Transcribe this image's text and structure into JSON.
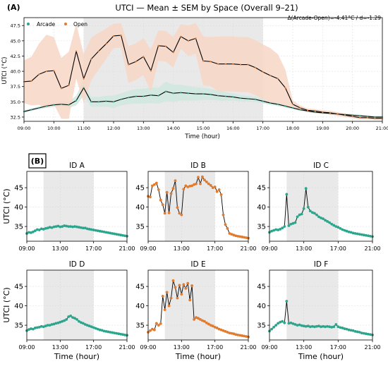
{
  "figure": {
    "panel_a_label": "(A)",
    "panel_b_label": "(B)"
  },
  "colors": {
    "arcade": "#2ca58d",
    "open": "#e07b2f",
    "arcade_band": "#cfe8de",
    "open_band": "#f7d6c6",
    "highlight": "#e9e9e9"
  },
  "chart_data": [
    {
      "type": "line",
      "title": "UTCI — Mean ± SEM by Space (Overall 9–21)",
      "xlabel": "Time (hour)",
      "ylabel": "UTCI (°C)",
      "annotation": "Δ(Arcade-Open)=-4.41°C / d=-1.29",
      "legend": [
        "Arcade",
        "Open"
      ],
      "legend_position": "top-left",
      "xlim": [
        9,
        21
      ],
      "ylim": [
        31.8,
        48.8
      ],
      "xticks": [
        9,
        10,
        11,
        12,
        13,
        14,
        15,
        16,
        17,
        18,
        19,
        20,
        21
      ],
      "xticklabels": [
        "09:00",
        "10:00",
        "11:00",
        "12:00",
        "13:00",
        "14:00",
        "15:00",
        "16:00",
        "17:00",
        "18:00",
        "19:00",
        "20:00",
        "21:00"
      ],
      "yticks": [
        32.5,
        35.0,
        37.5,
        40.0,
        42.5,
        45.0,
        47.5
      ],
      "yticklabels": [
        "32.5",
        "35.0",
        "37.5",
        "40.0",
        "42.5",
        "45.0",
        "47.5"
      ],
      "highlight": [
        11,
        17
      ],
      "series": [
        {
          "name": "Arcade",
          "x": [
            9,
            9.25,
            9.5,
            9.75,
            10,
            10.25,
            10.5,
            10.75,
            11,
            11.25,
            11.5,
            11.75,
            12,
            12.25,
            12.5,
            12.75,
            13,
            13.25,
            13.5,
            13.75,
            14,
            14.25,
            14.5,
            14.75,
            15,
            15.25,
            15.5,
            15.75,
            16,
            16.25,
            16.5,
            16.75,
            17,
            17.25,
            17.5,
            17.75,
            18,
            18.25,
            18.5,
            18.75,
            19,
            19.25,
            19.5,
            19.75,
            20,
            20.25,
            20.5,
            20.75,
            21
          ],
          "mean": [
            33.4,
            33.7,
            34.0,
            34.3,
            34.5,
            34.6,
            34.5,
            35.2,
            37.3,
            35.0,
            35.0,
            35.1,
            35.0,
            35.4,
            35.7,
            35.9,
            35.9,
            36.1,
            36.0,
            36.7,
            36.4,
            36.5,
            36.4,
            36.3,
            36.3,
            36.2,
            36.0,
            35.9,
            35.8,
            35.6,
            35.5,
            35.4,
            35.1,
            34.8,
            34.6,
            34.3,
            34.0,
            33.7,
            33.5,
            33.3,
            33.2,
            33.1,
            33.0,
            32.9,
            32.8,
            32.7,
            32.6,
            32.5,
            32.5
          ],
          "sem": [
            0.2,
            0.2,
            0.25,
            0.3,
            0.35,
            0.4,
            0.5,
            0.8,
            1.3,
            0.8,
            0.8,
            0.9,
            1.0,
            1.0,
            1.1,
            1.2,
            1.2,
            1.3,
            1.3,
            1.6,
            1.4,
            1.3,
            1.2,
            1.1,
            1.0,
            0.9,
            0.8,
            0.7,
            0.6,
            0.5,
            0.45,
            0.4,
            0.35,
            0.3,
            0.3,
            0.25,
            0.25,
            0.2,
            0.2,
            0.2,
            0.2,
            0.2,
            0.2,
            0.2,
            0.2,
            0.2,
            0.2,
            0.2,
            0.2
          ]
        },
        {
          "name": "Open",
          "x": [
            9,
            9.25,
            9.5,
            9.75,
            10,
            10.25,
            10.5,
            10.75,
            11,
            11.25,
            11.5,
            11.75,
            12,
            12.25,
            12.5,
            12.75,
            13,
            13.25,
            13.5,
            13.75,
            14,
            14.25,
            14.5,
            14.75,
            15,
            15.25,
            15.5,
            15.75,
            16,
            16.25,
            16.5,
            16.75,
            17,
            17.25,
            17.5,
            17.75,
            18,
            18.25,
            18.5,
            18.75,
            19,
            19.25,
            19.5,
            19.75,
            20,
            20.25,
            20.5,
            20.75,
            21
          ],
          "mean": [
            38.3,
            38.4,
            39.5,
            40.0,
            40.1,
            37.2,
            37.7,
            43.3,
            38.8,
            42.0,
            43.3,
            44.5,
            45.8,
            45.9,
            41.1,
            41.6,
            42.4,
            40.1,
            44.2,
            44.1,
            43.1,
            45.7,
            45.0,
            45.4,
            41.7,
            41.6,
            41.2,
            41.2,
            41.2,
            41.1,
            41.1,
            40.6,
            39.9,
            39.3,
            38.8,
            37.3,
            34.6,
            34.0,
            33.6,
            33.5,
            33.3,
            33.2,
            33.0,
            32.8,
            32.6,
            32.4,
            32.4,
            32.3,
            32.3
          ],
          "sem": [
            3.5,
            4.0,
            5.0,
            6.0,
            5.5,
            5.0,
            5.5,
            4.5,
            4.0,
            3.5,
            3.0,
            2.5,
            2.0,
            2.0,
            3.0,
            3.0,
            3.0,
            3.5,
            2.5,
            2.5,
            2.5,
            2.0,
            2.5,
            2.5,
            4.0,
            4.0,
            4.5,
            4.5,
            4.5,
            4.5,
            4.5,
            4.5,
            4.5,
            4.5,
            4.0,
            3.0,
            0.6,
            0.4,
            0.3,
            0.3,
            0.3,
            0.3,
            0.3,
            0.3,
            0.3,
            0.3,
            0.3,
            0.3,
            0.3
          ]
        }
      ]
    },
    {
      "type": "scatter",
      "title": "ID A",
      "space": "Arcade",
      "xlabel": "",
      "ylabel": "UTCI (°C)",
      "ylim": [
        31.2,
        49.2
      ],
      "yticks": [
        35,
        40,
        45
      ],
      "xticks": [
        9,
        13,
        17,
        21
      ],
      "xticklabels": [
        "09:00",
        "13:00",
        "17:00",
        "21:00"
      ],
      "highlight": [
        11,
        17
      ],
      "x": [
        9,
        9.25,
        9.5,
        9.75,
        10,
        10.25,
        10.5,
        10.75,
        11,
        11.25,
        11.5,
        11.75,
        12,
        12.25,
        12.5,
        12.75,
        13,
        13.25,
        13.5,
        13.75,
        14,
        14.25,
        14.5,
        14.75,
        15,
        15.25,
        15.5,
        15.75,
        16,
        16.25,
        16.5,
        16.75,
        17,
        17.25,
        17.5,
        17.75,
        18,
        18.25,
        18.5,
        18.75,
        19,
        19.25,
        19.5,
        19.75,
        20,
        20.25,
        20.5,
        20.75,
        21
      ],
      "y": [
        33.2,
        33.5,
        33.4,
        33.6,
        33.9,
        34.2,
        34.1,
        34.4,
        34.3,
        34.5,
        34.6,
        34.8,
        34.7,
        34.9,
        35.0,
        35.1,
        34.9,
        35.0,
        35.2,
        35.1,
        35.0,
        35.0,
        34.9,
        35.0,
        34.9,
        34.8,
        34.7,
        34.6,
        34.6,
        34.4,
        34.3,
        34.2,
        34.1,
        34.0,
        33.9,
        33.8,
        33.7,
        33.6,
        33.5,
        33.4,
        33.3,
        33.2,
        33.1,
        33.0,
        32.9,
        32.8,
        32.7,
        32.6,
        32.5
      ]
    },
    {
      "type": "scatter",
      "title": "ID B",
      "space": "Open",
      "xlabel": "",
      "ylabel": "",
      "ylim": [
        31.2,
        49.2
      ],
      "yticks": [
        35,
        40,
        45
      ],
      "xticks": [
        9,
        13,
        17,
        21
      ],
      "xticklabels": [
        "09:00",
        "13:00",
        "17:00",
        "21:00"
      ],
      "highlight": [
        11,
        17
      ],
      "x": [
        9,
        9.25,
        9.5,
        9.75,
        10,
        10.25,
        10.5,
        10.75,
        11,
        11.25,
        11.5,
        11.75,
        12,
        12.25,
        12.5,
        12.75,
        13,
        13.25,
        13.5,
        13.75,
        14,
        14.25,
        14.5,
        14.75,
        15,
        15.25,
        15.5,
        15.75,
        16,
        16.25,
        16.5,
        16.75,
        17,
        17.25,
        17.5,
        17.75,
        18,
        18.25,
        18.5,
        18.75,
        19,
        19.25,
        19.5,
        19.75,
        20,
        20.25,
        20.5,
        20.75,
        21
      ],
      "y": [
        42.8,
        42.6,
        45.5,
        45.8,
        46.2,
        44.5,
        41.8,
        40.6,
        38.4,
        43.8,
        38.5,
        43.5,
        44.8,
        46.8,
        39.9,
        38.4,
        38.0,
        44.6,
        45.5,
        45.2,
        45.4,
        45.5,
        45.8,
        46.0,
        47.7,
        46.0,
        47.8,
        47.0,
        46.5,
        46.0,
        45.6,
        45.0,
        45.2,
        44.0,
        44.5,
        43.2,
        38.0,
        35.5,
        34.5,
        33.2,
        33.0,
        32.8,
        32.6,
        32.5,
        32.4,
        32.3,
        32.2,
        32.1,
        32.0
      ]
    },
    {
      "type": "scatter",
      "title": "ID C",
      "space": "Arcade",
      "xlabel": "",
      "ylabel": "",
      "ylim": [
        31.2,
        49.2
      ],
      "yticks": [
        35,
        40,
        45
      ],
      "xticks": [
        9,
        13,
        17,
        21
      ],
      "xticklabels": [
        "09:00",
        "13:00",
        "17:00",
        "21:00"
      ],
      "highlight": [
        11,
        17
      ],
      "x": [
        9,
        9.25,
        9.5,
        9.75,
        10,
        10.25,
        10.5,
        10.75,
        11,
        11.25,
        11.5,
        11.75,
        12,
        12.25,
        12.5,
        12.75,
        13,
        13.25,
        13.5,
        13.75,
        14,
        14.25,
        14.5,
        14.75,
        15,
        15.25,
        15.5,
        15.75,
        16,
        16.25,
        16.5,
        16.75,
        17,
        17.25,
        17.5,
        17.75,
        18,
        18.25,
        18.5,
        18.75,
        19,
        19.25,
        19.5,
        19.75,
        20,
        20.25,
        20.5,
        20.75,
        21
      ],
      "y": [
        33.5,
        33.8,
        34.0,
        34.2,
        34.1,
        34.3,
        34.6,
        35.0,
        43.3,
        35.2,
        35.6,
        35.8,
        36.0,
        37.5,
        38.0,
        38.2,
        39.6,
        44.8,
        40.0,
        39.0,
        38.6,
        38.4,
        38.0,
        37.5,
        37.2,
        37.0,
        36.6,
        36.3,
        36.0,
        35.6,
        35.3,
        35.0,
        34.8,
        34.5,
        34.2,
        34.0,
        33.8,
        33.6,
        33.5,
        33.3,
        33.2,
        33.1,
        33.0,
        32.9,
        32.8,
        32.7,
        32.6,
        32.5,
        32.4
      ]
    },
    {
      "type": "scatter",
      "title": "ID D",
      "space": "Arcade",
      "xlabel": "Time (hour)",
      "ylabel": "UTCI (°C)",
      "ylim": [
        31.2,
        49.2
      ],
      "yticks": [
        35,
        40,
        45
      ],
      "xticks": [
        9,
        13,
        17,
        21
      ],
      "xticklabels": [
        "09:00",
        "13:00",
        "17:00",
        "21:00"
      ],
      "highlight": [
        11,
        17
      ],
      "x": [
        9,
        9.25,
        9.5,
        9.75,
        10,
        10.25,
        10.5,
        10.75,
        11,
        11.25,
        11.5,
        11.75,
        12,
        12.25,
        12.5,
        12.75,
        13,
        13.25,
        13.5,
        13.75,
        14,
        14.25,
        14.5,
        14.75,
        15,
        15.25,
        15.5,
        15.75,
        16,
        16.25,
        16.5,
        16.75,
        17,
        17.25,
        17.5,
        17.75,
        18,
        18.25,
        18.5,
        18.75,
        19,
        19.25,
        19.5,
        19.75,
        20,
        20.25,
        20.5,
        20.75,
        21
      ],
      "y": [
        33.6,
        33.9,
        34.1,
        34.0,
        34.3,
        34.4,
        34.5,
        34.7,
        34.6,
        34.8,
        35.0,
        35.0,
        35.2,
        35.3,
        35.5,
        35.6,
        35.8,
        36.0,
        36.2,
        36.5,
        37.2,
        37.4,
        37.0,
        36.8,
        36.5,
        36.0,
        35.7,
        35.5,
        35.2,
        35.0,
        34.8,
        34.6,
        34.4,
        34.2,
        34.0,
        33.8,
        33.7,
        33.5,
        33.4,
        33.3,
        33.2,
        33.1,
        33.0,
        32.9,
        32.8,
        32.7,
        32.6,
        32.5,
        32.4
      ]
    },
    {
      "type": "scatter",
      "title": "ID E",
      "space": "Open",
      "xlabel": "Time (hour)",
      "ylabel": "",
      "ylim": [
        31.2,
        49.2
      ],
      "yticks": [
        35,
        40,
        45
      ],
      "xticks": [
        9,
        13,
        17,
        21
      ],
      "xticklabels": [
        "09:00",
        "13:00",
        "17:00",
        "21:00"
      ],
      "highlight": [
        11,
        17
      ],
      "x": [
        9,
        9.25,
        9.5,
        9.75,
        10,
        10.25,
        10.5,
        10.75,
        11,
        11.25,
        11.5,
        11.75,
        12,
        12.25,
        12.5,
        12.75,
        13,
        13.25,
        13.5,
        13.75,
        14,
        14.25,
        14.5,
        14.75,
        15,
        15.25,
        15.5,
        15.75,
        16,
        16.25,
        16.5,
        16.75,
        17,
        17.25,
        17.5,
        17.75,
        18,
        18.25,
        18.5,
        18.75,
        19,
        19.25,
        19.5,
        19.75,
        20,
        20.25,
        20.5,
        20.75,
        21
      ],
      "y": [
        33.2,
        33.6,
        34.0,
        33.8,
        35.5,
        35.0,
        35.4,
        42.5,
        39.0,
        43.5,
        40.0,
        42.0,
        46.5,
        44.8,
        42.0,
        45.3,
        43.0,
        45.5,
        44.5,
        45.8,
        41.5,
        45.2,
        36.5,
        37.0,
        36.8,
        36.5,
        36.2,
        36.0,
        35.6,
        35.3,
        35.0,
        34.8,
        34.5,
        34.3,
        34.0,
        33.8,
        33.6,
        33.4,
        33.2,
        33.0,
        32.9,
        32.8,
        32.6,
        32.5,
        32.4,
        32.3,
        32.2,
        32.1,
        32.0
      ]
    },
    {
      "type": "scatter",
      "title": "ID F",
      "space": "Arcade",
      "xlabel": "Time (hour)",
      "ylabel": "",
      "ylim": [
        31.2,
        49.2
      ],
      "yticks": [
        35,
        40,
        45
      ],
      "xticks": [
        9,
        13,
        17,
        21
      ],
      "xticklabels": [
        "09:00",
        "13:00",
        "17:00",
        "21:00"
      ],
      "highlight": [
        11,
        17
      ],
      "x": [
        9,
        9.25,
        9.5,
        9.75,
        10,
        10.25,
        10.5,
        10.75,
        11,
        11.25,
        11.5,
        11.75,
        12,
        12.25,
        12.5,
        12.75,
        13,
        13.25,
        13.5,
        13.75,
        14,
        14.25,
        14.5,
        14.75,
        15,
        15.25,
        15.5,
        15.75,
        16,
        16.25,
        16.5,
        16.75,
        17,
        17.25,
        17.5,
        17.75,
        18,
        18.25,
        18.5,
        18.75,
        19,
        19.25,
        19.5,
        19.75,
        20,
        20.25,
        20.5,
        20.75,
        21
      ],
      "y": [
        33.5,
        34.0,
        34.5,
        35.0,
        35.5,
        35.8,
        36.0,
        35.6,
        41.2,
        35.5,
        35.6,
        35.4,
        35.2,
        35.0,
        35.1,
        34.9,
        34.8,
        34.7,
        34.8,
        34.6,
        34.7,
        34.6,
        34.7,
        34.8,
        34.6,
        34.7,
        34.6,
        34.7,
        34.6,
        34.5,
        34.6,
        35.2,
        34.6,
        34.4,
        34.3,
        34.1,
        34.0,
        33.8,
        33.7,
        33.6,
        33.4,
        33.3,
        33.2,
        33.0,
        32.9,
        32.8,
        32.7,
        32.6,
        32.5
      ]
    }
  ]
}
